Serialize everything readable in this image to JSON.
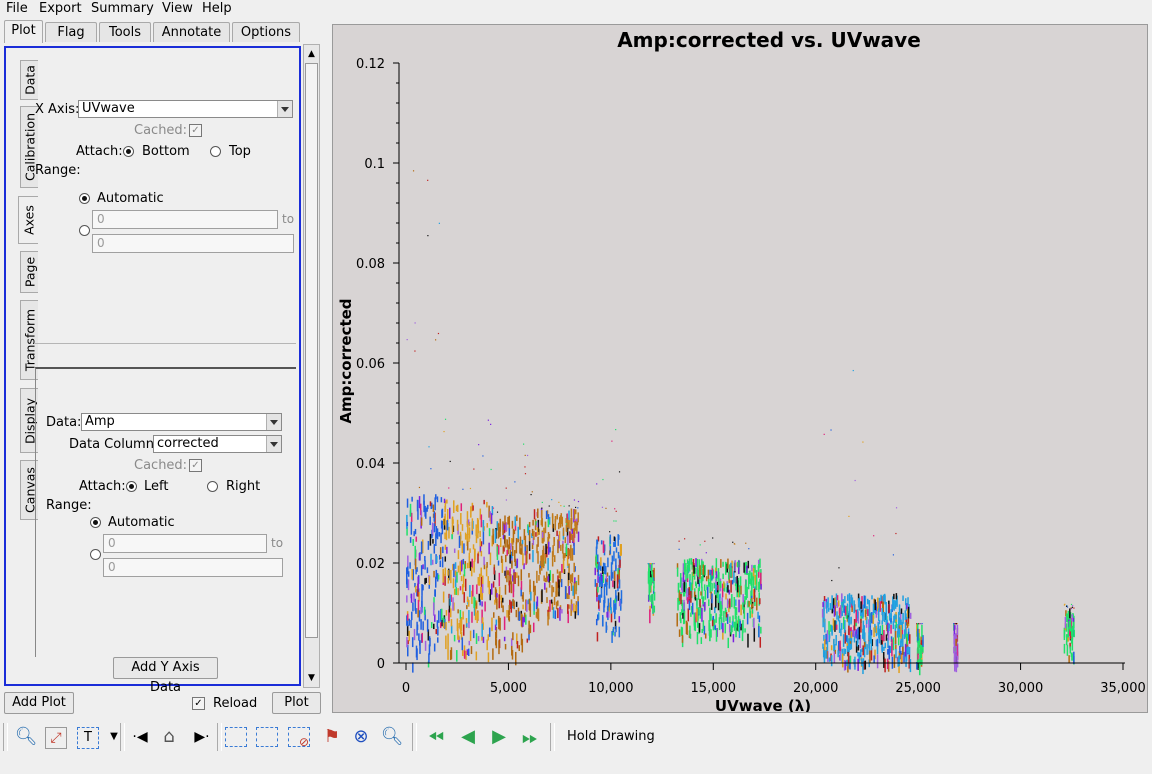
{
  "menubar": {
    "items": [
      "File",
      "Export",
      "Summary",
      "View",
      "Help"
    ]
  },
  "tabs": [
    "Plot",
    "Flag",
    "Tools",
    "Annotate",
    "Options"
  ],
  "side_tabs": [
    "Data",
    "Calibration",
    "Axes",
    "Page",
    "Transform",
    "Display",
    "Canvas"
  ],
  "x_axis": {
    "label": "X Axis:",
    "value": "UVwave",
    "cached_label": "Cached:",
    "attach_label": "Attach:",
    "attach_options": [
      "Bottom",
      "Top"
    ],
    "range_label": "Range:",
    "automatic_label": "Automatic",
    "range_from": "0",
    "range_to_label": "to",
    "range_to": "0"
  },
  "y_axis": {
    "data_label": "Data:",
    "data_value": "Amp",
    "column_label": "Data Column:",
    "column_value": "corrected",
    "cached_label": "Cached:",
    "attach_label": "Attach:",
    "attach_options": [
      "Left",
      "Right"
    ],
    "range_label": "Range:",
    "automatic_label": "Automatic",
    "range_from": "0",
    "range_to_label": "to",
    "range_to": "0",
    "add_button": "Add Y Axis Data"
  },
  "bottom": {
    "add_plot": "Add Plot",
    "reload": "Reload",
    "plot": "Plot"
  },
  "toolbar": {
    "hold_drawing": "Hold Drawing",
    "icons": [
      "zoom-icon",
      "fit-icon",
      "text-annotate-icon",
      "dropdown-icon",
      "step-back-icon",
      "home-icon",
      "step-forward-icon",
      "select-box-icon",
      "sub-select-icon",
      "clear-select-icon",
      "flag-icon",
      "unflag-icon",
      "locate-icon",
      "first-page-icon",
      "prev-page-icon",
      "next-page-icon",
      "last-page-icon"
    ]
  },
  "chart_data": {
    "type": "scatter",
    "title": "Amp:corrected vs. UVwave",
    "xlabel": "UVwave (λ)",
    "ylabel": "Amp:corrected",
    "xlim": [
      0,
      35000
    ],
    "ylim": [
      0,
      0.12
    ],
    "x_ticks": [
      "0",
      "5,000",
      "10,000",
      "15,000",
      "20,000",
      "25,000",
      "30,000",
      "35,000"
    ],
    "y_ticks": [
      "0",
      "0.02",
      "0.04",
      "0.06",
      "0.08",
      "0.1",
      "0.12"
    ],
    "grid": false,
    "clusters": [
      {
        "x_min": 0,
        "x_max": 1800,
        "y_min": 0.0,
        "y_max": 0.034,
        "outlier_max": 0.101,
        "color": "#1f5fe0"
      },
      {
        "x_min": 1800,
        "x_max": 4200,
        "y_min": 0.002,
        "y_max": 0.033,
        "outlier_max": 0.05,
        "color": "#e0a020"
      },
      {
        "x_min": 4200,
        "x_max": 6200,
        "y_min": 0.002,
        "y_max": 0.03,
        "outlier_max": 0.044,
        "color": "#b36a10"
      },
      {
        "x_min": 6200,
        "x_max": 8400,
        "y_min": 0.01,
        "y_max": 0.031,
        "outlier_max": 0.033,
        "color": "#c07a1a"
      },
      {
        "x_min": 9200,
        "x_max": 10500,
        "y_min": 0.006,
        "y_max": 0.026,
        "outlier_max": 0.047,
        "color": "#1f6ee0"
      },
      {
        "x_min": 11800,
        "x_max": 12100,
        "y_min": 0.01,
        "y_max": 0.02,
        "outlier_max": 0.02,
        "color": "#20e06a"
      },
      {
        "x_min": 13200,
        "x_max": 17300,
        "y_min": 0.005,
        "y_max": 0.021,
        "outlier_max": 0.026,
        "color": "#20e06a"
      },
      {
        "x_min": 20300,
        "x_max": 24600,
        "y_min": 0.0,
        "y_max": 0.014,
        "outlier_max": 0.06,
        "color": "#20a0e0"
      },
      {
        "x_min": 24900,
        "x_max": 25200,
        "y_min": 0.0,
        "y_max": 0.008,
        "outlier_max": 0.008,
        "color": "#20e06a"
      },
      {
        "x_min": 26700,
        "x_max": 26900,
        "y_min": 0.0,
        "y_max": 0.008,
        "outlier_max": 0.008,
        "color": "#a060e0"
      },
      {
        "x_min": 32100,
        "x_max": 32600,
        "y_min": 0.001,
        "y_max": 0.011,
        "outlier_max": 0.012,
        "color": "#20e06a"
      }
    ]
  }
}
